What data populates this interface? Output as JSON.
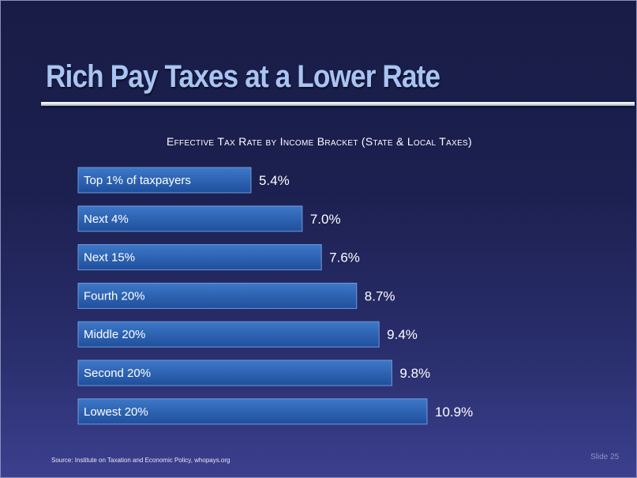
{
  "slide": {
    "title": "Rich Pay Taxes at a Lower Rate",
    "source": "Source: Institute on Taxation and Economic Policy, whopays.org",
    "slide_number": "Slide 25"
  },
  "colors": {
    "title": "#a8c4f2",
    "bar_top": "#3d78c8",
    "bar_bottom": "#1f4f9c",
    "background_top": "#181c45",
    "background_bottom": "#3c3f8e"
  },
  "chart_data": {
    "type": "bar",
    "orientation": "horizontal",
    "title": "Effective Tax Rate by Income Bracket (State & Local Taxes)",
    "categories": [
      "Top 1% of taxpayers",
      "Next 4%",
      "Next 15%",
      "Fourth 20%",
      "Middle 20%",
      "Second 20%",
      "Lowest 20%"
    ],
    "values": [
      5.4,
      7.0,
      7.6,
      8.7,
      9.4,
      9.8,
      10.9
    ],
    "value_labels": [
      "5.4%",
      "7.0%",
      "7.6%",
      "8.7%",
      "9.4%",
      "9.8%",
      "10.9%"
    ],
    "unit": "%",
    "xlim": [
      0,
      10.9
    ],
    "grid": false,
    "legend": "none"
  }
}
